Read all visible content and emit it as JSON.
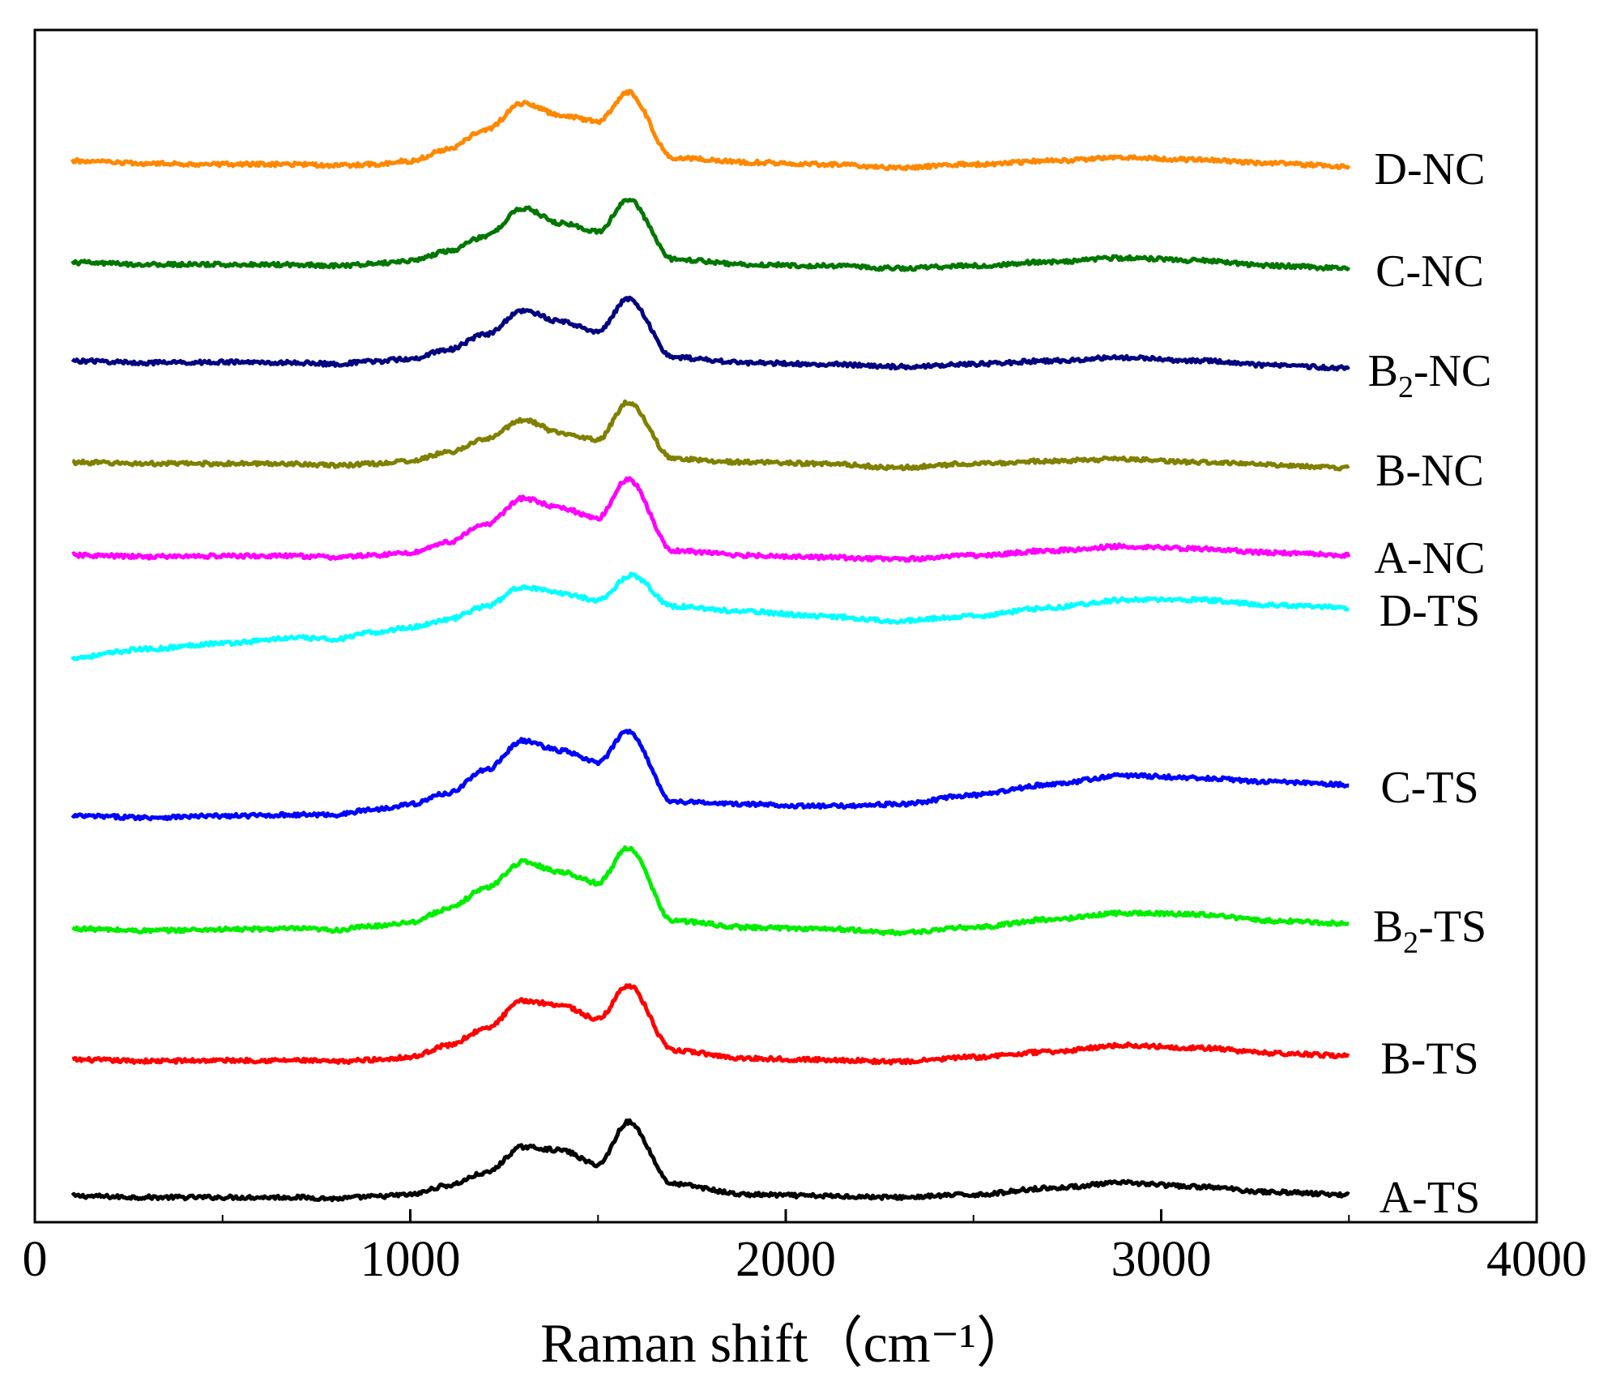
{
  "chart_data": {
    "type": "line",
    "title": "",
    "xlabel": "Raman shift",
    "xlabel_unit": "（cm⁻¹）",
    "ylabel": "",
    "xlim": [
      0,
      4000
    ],
    "x_ticks": [
      0,
      1000,
      2000,
      3000,
      4000
    ],
    "y_ticks_shown": false,
    "grid": false,
    "legend": "inline labels at right end of each curve",
    "note": "stacked (offset) Raman spectra; y values are relative intensity plus vertical offset, in arbitrary units",
    "series": [
      {
        "name": "A-TS",
        "label_base": "A-TS",
        "label_sub": "",
        "color": "#000000",
        "baseline": 0.2,
        "x": [
          100,
          300,
          500,
          700,
          800,
          900,
          1000,
          1100,
          1200,
          1300,
          1400,
          1500,
          1580,
          1700,
          1900,
          2100,
          2300,
          2500,
          2700,
          2900,
          3100,
          3300,
          3500
        ],
        "y": [
          0.2,
          0.18,
          0.18,
          0.18,
          0.16,
          0.19,
          0.22,
          0.36,
          0.55,
          0.95,
          0.9,
          0.68,
          1.33,
          0.38,
          0.22,
          0.2,
          0.18,
          0.22,
          0.32,
          0.4,
          0.34,
          0.26,
          0.22
        ]
      },
      {
        "name": "B-TS",
        "label_base": "B-TS",
        "label_sub": "",
        "color": "#ff0000",
        "baseline": 2.28,
        "x": [
          100,
          300,
          500,
          700,
          800,
          900,
          1000,
          1100,
          1200,
          1300,
          1400,
          1500,
          1580,
          1700,
          1900,
          2100,
          2300,
          2500,
          2700,
          2900,
          3100,
          3300,
          3500
        ],
        "y": [
          2.28,
          2.26,
          2.27,
          2.27,
          2.25,
          2.28,
          2.32,
          2.5,
          2.75,
          3.18,
          3.12,
          2.9,
          3.42,
          2.42,
          2.3,
          2.28,
          2.25,
          2.32,
          2.4,
          2.5,
          2.46,
          2.38,
          2.34
        ]
      },
      {
        "name": "B2-TS",
        "label_base": "B",
        "label_sub": "2",
        "label_tail": "-TS",
        "color": "#00ee00",
        "baseline": 4.28,
        "x": [
          100,
          300,
          500,
          700,
          800,
          900,
          1000,
          1100,
          1200,
          1300,
          1400,
          1500,
          1580,
          1700,
          1900,
          2100,
          2300,
          2500,
          2700,
          2900,
          3100,
          3300,
          3500
        ],
        "y": [
          4.28,
          4.25,
          4.27,
          4.28,
          4.26,
          4.32,
          4.38,
          4.58,
          4.9,
          5.3,
          5.15,
          4.98,
          5.52,
          4.4,
          4.3,
          4.28,
          4.22,
          4.3,
          4.42,
          4.52,
          4.5,
          4.4,
          4.36
        ]
      },
      {
        "name": "C-TS",
        "label_base": "C-TS",
        "label_sub": "",
        "color": "#0000ff",
        "baseline": 6.0,
        "x": [
          100,
          300,
          500,
          700,
          800,
          900,
          1000,
          1100,
          1200,
          1300,
          1400,
          1500,
          1580,
          1700,
          1900,
          2100,
          2300,
          2500,
          2700,
          2900,
          3100,
          3300,
          3500
        ],
        "y": [
          6.0,
          5.98,
          6.0,
          6.02,
          6.02,
          6.1,
          6.18,
          6.35,
          6.7,
          7.15,
          7.0,
          6.82,
          7.3,
          6.22,
          6.18,
          6.15,
          6.18,
          6.32,
          6.48,
          6.62,
          6.58,
          6.52,
          6.48
        ]
      },
      {
        "name": "D-TS",
        "label_base": "D-TS",
        "label_sub": "",
        "color": "#00ffff",
        "baseline": 8.42,
        "x": [
          100,
          300,
          500,
          700,
          800,
          900,
          1000,
          1100,
          1200,
          1300,
          1400,
          1500,
          1590,
          1700,
          1900,
          2100,
          2300,
          2500,
          2700,
          2900,
          3100,
          3300,
          3500
        ],
        "y": [
          8.42,
          8.55,
          8.64,
          8.72,
          8.7,
          8.8,
          8.88,
          9.0,
          9.2,
          9.5,
          9.4,
          9.3,
          9.68,
          9.2,
          9.12,
          9.05,
          8.98,
          9.05,
          9.18,
          9.3,
          9.3,
          9.22,
          9.18
        ]
      },
      {
        "name": "A-NC",
        "label_base": "A-NC",
        "label_sub": "",
        "color": "#ff00ff",
        "baseline": 9.98,
        "x": [
          100,
          300,
          500,
          700,
          800,
          900,
          1000,
          1100,
          1200,
          1300,
          1400,
          1500,
          1580,
          1700,
          1900,
          2100,
          2300,
          2500,
          2700,
          2900,
          3100,
          3300,
          3500
        ],
        "y": [
          9.98,
          9.96,
          9.97,
          9.97,
          9.95,
          9.98,
          10.02,
          10.18,
          10.45,
          10.85,
          10.7,
          10.55,
          11.15,
          10.05,
          9.98,
          9.95,
          9.92,
          9.98,
          10.05,
          10.12,
          10.08,
          10.02,
          9.98
        ]
      },
      {
        "name": "B-NC",
        "label_base": "B-NC",
        "label_sub": "",
        "color": "#808000",
        "baseline": 11.4,
        "x": [
          100,
          300,
          500,
          700,
          800,
          900,
          1000,
          1100,
          1200,
          1300,
          1400,
          1500,
          1580,
          1700,
          1900,
          2100,
          2300,
          2500,
          2700,
          2900,
          3100,
          3300,
          3500
        ],
        "y": [
          11.4,
          11.38,
          11.38,
          11.38,
          11.35,
          11.38,
          11.42,
          11.55,
          11.75,
          12.05,
          11.85,
          11.75,
          12.32,
          11.45,
          11.4,
          11.38,
          11.32,
          11.38,
          11.42,
          11.45,
          11.4,
          11.36,
          11.32
        ]
      },
      {
        "name": "B2-NC",
        "label_base": "B",
        "label_sub": "2",
        "label_tail": "-NC",
        "color": "#000080",
        "baseline": 12.95,
        "x": [
          100,
          300,
          500,
          700,
          800,
          900,
          1000,
          1100,
          1200,
          1300,
          1400,
          1500,
          1580,
          1700,
          1900,
          2100,
          2300,
          2500,
          2700,
          2900,
          3100,
          3300,
          3500
        ],
        "y": [
          12.95,
          12.92,
          12.93,
          12.92,
          12.9,
          12.94,
          12.98,
          13.12,
          13.35,
          13.72,
          13.55,
          13.4,
          13.9,
          13.0,
          12.92,
          12.9,
          12.86,
          12.9,
          12.95,
          13.0,
          12.95,
          12.88,
          12.84
        ]
      },
      {
        "name": "C-NC",
        "label_base": "C-NC",
        "label_sub": "",
        "color": "#007700",
        "baseline": 14.45,
        "x": [
          100,
          300,
          500,
          700,
          800,
          900,
          1000,
          1100,
          1200,
          1300,
          1400,
          1500,
          1580,
          1700,
          1900,
          2100,
          2300,
          2500,
          2700,
          2900,
          3100,
          3300,
          3500
        ],
        "y": [
          14.45,
          14.42,
          14.42,
          14.42,
          14.4,
          14.43,
          14.48,
          14.62,
          14.85,
          15.28,
          15.05,
          14.92,
          15.42,
          14.5,
          14.42,
          14.4,
          14.36,
          14.4,
          14.46,
          14.52,
          14.48,
          14.4,
          14.36
        ]
      },
      {
        "name": "D-NC",
        "label_base": "D-NC",
        "label_sub": "",
        "color": "#ff8800",
        "baseline": 16.0,
        "x": [
          100,
          300,
          500,
          700,
          800,
          900,
          1000,
          1100,
          1200,
          1300,
          1400,
          1500,
          1580,
          1700,
          1900,
          2100,
          2300,
          2500,
          2700,
          2900,
          3100,
          3300,
          3500
        ],
        "y": [
          16.0,
          15.96,
          15.95,
          15.95,
          15.93,
          15.95,
          16.0,
          16.18,
          16.48,
          16.88,
          16.7,
          16.6,
          17.05,
          16.05,
          15.98,
          15.95,
          15.9,
          15.95,
          16.0,
          16.05,
          16.02,
          15.96,
          15.92
        ]
      }
    ]
  }
}
